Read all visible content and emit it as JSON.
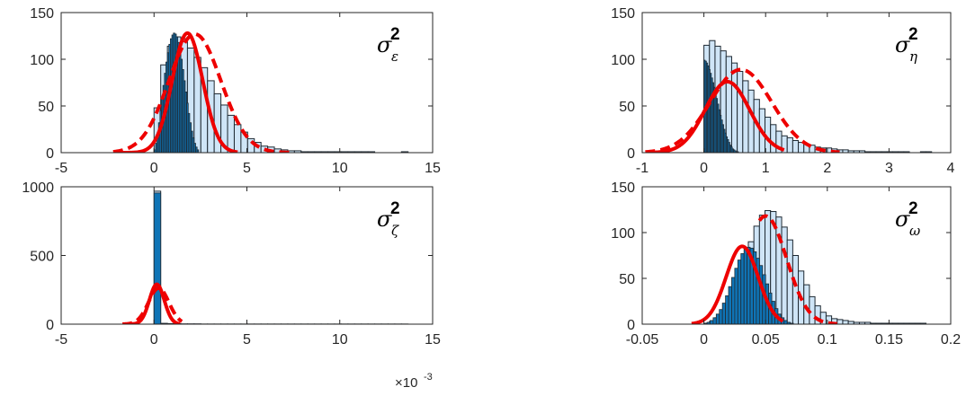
{
  "chart_data": [
    {
      "id": "sigma-epsilon",
      "type": "bar",
      "panel_label": {
        "base": "σ",
        "sup": "2",
        "sub": "ε"
      },
      "xlim": [
        -5,
        15
      ],
      "ylim": [
        0,
        150
      ],
      "xticks": [
        "-5",
        "0",
        "5",
        "10",
        "15"
      ],
      "xtick_values": [
        -5,
        0,
        5,
        10,
        15
      ],
      "yticks": [
        "0",
        "50",
        "100",
        "150"
      ],
      "ytick_values": [
        0,
        50,
        100,
        150
      ],
      "multiplier": "",
      "hist_light": {
        "start": 0,
        "width": 0.36,
        "values": [
          48,
          94,
          114,
          124,
          122,
          112,
          102,
          91,
          77,
          63,
          51,
          40,
          30,
          22,
          15,
          11,
          7,
          6,
          4,
          3,
          2,
          2,
          1,
          1,
          1,
          1,
          1,
          1,
          1,
          1,
          1,
          1,
          1,
          0,
          0,
          0,
          0,
          1
        ]
      },
      "hist_dark": {
        "start": 0,
        "width": 0.08,
        "values": [
          3,
          10,
          20,
          32,
          45,
          58,
          72,
          85,
          97,
          107,
          116,
          122,
          126,
          128,
          127,
          124,
          118,
          110,
          100,
          89,
          77,
          65,
          53,
          42,
          32,
          23,
          16,
          10,
          6,
          3
        ]
      },
      "fit_solid": {
        "mean": 1.8,
        "sd": 0.82,
        "peak": 128,
        "range": [
          -2,
          4.5
        ]
      },
      "fit_dashed": {
        "mean": 2.2,
        "sd": 1.4,
        "peak": 127,
        "range": [
          -2.2,
          7.5
        ]
      }
    },
    {
      "id": "sigma-eta",
      "type": "bar",
      "panel_label": {
        "base": "σ",
        "sup": "2",
        "sub": "η"
      },
      "xlim": [
        -1,
        4
      ],
      "ylim": [
        0,
        150
      ],
      "xticks": [
        "-1",
        "0",
        "1",
        "2",
        "3",
        "4"
      ],
      "xtick_values": [
        -1,
        0,
        1,
        2,
        3,
        4
      ],
      "yticks": [
        "0",
        "50",
        "100",
        "150"
      ],
      "ytick_values": [
        0,
        50,
        100,
        150
      ],
      "multiplier": "",
      "hist_light": {
        "start": 0,
        "width": 0.09,
        "values": [
          115,
          120,
          114,
          109,
          103,
          96,
          87,
          77,
          67,
          57,
          47,
          38,
          30,
          23,
          18,
          16,
          13,
          11,
          9,
          8,
          6,
          5,
          5,
          4,
          3,
          3,
          2,
          2,
          2,
          1,
          1,
          1,
          1,
          1,
          1,
          1,
          1,
          0,
          0,
          1,
          1
        ]
      },
      "hist_dark": {
        "start": 0,
        "width": 0.02,
        "values": [
          99,
          98,
          96,
          93,
          89,
          85,
          80,
          75,
          70,
          64,
          58,
          52,
          46,
          40,
          35,
          30,
          25,
          21,
          17,
          14,
          11,
          8,
          6,
          4,
          3,
          2,
          1,
          1,
          0,
          0,
          0,
          0,
          0,
          0,
          0,
          0,
          0,
          0,
          0,
          0,
          0,
          0,
          0,
          0,
          0,
          0,
          0,
          0,
          0,
          0
        ]
      },
      "fit_solid": {
        "mean": 0.38,
        "sd": 0.36,
        "peak": 76,
        "range": [
          -0.9,
          1.3
        ]
      },
      "fit_dashed": {
        "mean": 0.6,
        "sd": 0.5,
        "peak": 89,
        "range": [
          -0.95,
          2.2
        ]
      }
    },
    {
      "id": "sigma-zeta",
      "type": "bar",
      "panel_label": {
        "base": "σ",
        "sup": "2",
        "sub": "ζ"
      },
      "xlim": [
        -5,
        15
      ],
      "ylim": [
        0,
        1000
      ],
      "xticks": [
        "-5",
        "0",
        "5",
        "10",
        "15"
      ],
      "xtick_values": [
        -5,
        0,
        5,
        10,
        15
      ],
      "yticks": [
        "0",
        "500",
        "1000"
      ],
      "ytick_values": [
        0,
        500,
        1000
      ],
      "multiplier": {
        "base": "×10",
        "exp": "-3"
      },
      "hist_light": {
        "start": 0,
        "width": 0.36,
        "values": [
          968,
          6,
          4,
          3,
          2,
          2,
          2,
          1,
          1,
          1,
          1,
          1,
          1,
          1,
          1,
          1,
          1,
          1,
          1,
          1,
          1,
          1,
          1,
          1,
          1,
          1,
          1,
          1,
          1,
          1,
          1,
          1,
          1,
          1,
          1,
          1,
          1,
          1
        ]
      },
      "hist_dark": {
        "start": 0,
        "width": 0.36,
        "values": [
          955
        ]
      },
      "fit_solid": {
        "mean": 0.15,
        "sd": 0.4,
        "peak": 290,
        "range": [
          -1.6,
          1.4
        ]
      },
      "fit_dashed": {
        "mean": 0.25,
        "sd": 0.55,
        "peak": 262,
        "range": [
          -1.7,
          1.5
        ]
      }
    },
    {
      "id": "sigma-omega",
      "type": "bar",
      "panel_label": {
        "base": "σ",
        "sup": "2",
        "sub": "ω"
      },
      "xlim": [
        -0.05,
        0.2
      ],
      "ylim": [
        0,
        150
      ],
      "xticks": [
        "-0.05",
        "0",
        "0.05",
        "0.1",
        "0.15",
        "0.2"
      ],
      "xtick_values": [
        -0.05,
        0,
        0.05,
        0.1,
        0.15,
        0.2
      ],
      "yticks": [
        "0",
        "50",
        "100",
        "150"
      ],
      "ytick_values": [
        0,
        50,
        100,
        150
      ],
      "multiplier": "",
      "hist_light": {
        "start": 0,
        "width": 0.0045,
        "values": [
          1,
          3,
          7,
          13,
          23,
          36,
          53,
          71,
          90,
          107,
          119,
          124,
          123,
          117,
          106,
          92,
          75,
          58,
          43,
          30,
          20,
          13,
          9,
          6,
          5,
          4,
          3,
          2,
          2,
          2,
          1,
          1,
          1,
          1,
          1,
          1,
          1,
          1,
          1,
          1
        ]
      },
      "hist_dark": {
        "start": 0,
        "width": 0.0025,
        "values": [
          1,
          2,
          4,
          7,
          11,
          16,
          23,
          31,
          41,
          51,
          61,
          70,
          77,
          82,
          84,
          83,
          79,
          72,
          64,
          54,
          44,
          34,
          25,
          17,
          11,
          7,
          4,
          2,
          1
        ]
      },
      "fit_solid": {
        "mean": 0.031,
        "sd": 0.013,
        "peak": 85,
        "range": [
          -0.01,
          0.064
        ]
      },
      "fit_dashed": {
        "mean": 0.05,
        "sd": 0.017,
        "peak": 118,
        "range": [
          0.045,
          0.108
        ]
      }
    }
  ]
}
